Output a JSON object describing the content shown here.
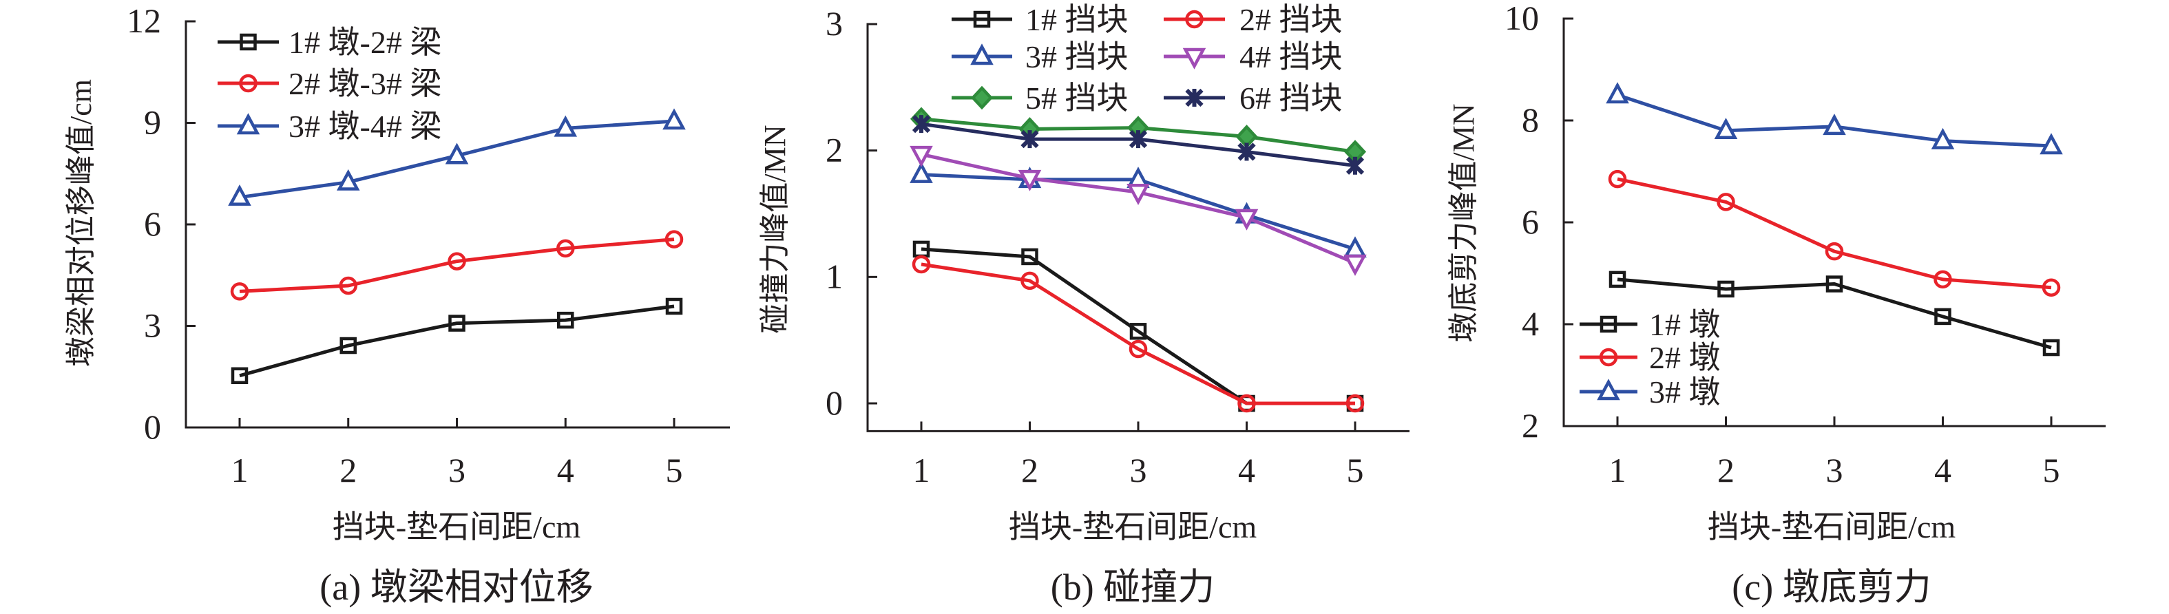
{
  "chart_data": [
    {
      "type": "line",
      "caption": "(a) 墩梁相对位移",
      "xlabel": "挡块-垫石间距/cm",
      "ylabel": "墩梁相对位移峰值/cm",
      "x": [
        1,
        2,
        3,
        4,
        5
      ],
      "ylim": [
        0,
        12
      ],
      "yticks": [
        0,
        3,
        6,
        9,
        12
      ],
      "legend_position": "top-left",
      "series": [
        {
          "name": "1# 墩-2# 梁",
          "color": "#1a1a1a",
          "marker": "square",
          "values": [
            1.53,
            2.42,
            3.08,
            3.17,
            3.58
          ]
        },
        {
          "name": "2# 墩-3# 梁",
          "color": "#e8232a",
          "marker": "circle",
          "values": [
            4.02,
            4.19,
            4.91,
            5.29,
            5.56
          ]
        },
        {
          "name": "3# 墩-4# 梁",
          "color": "#2e4fa3",
          "marker": "triangle-up",
          "values": [
            6.8,
            7.25,
            8.03,
            8.84,
            9.05
          ]
        }
      ]
    },
    {
      "type": "line",
      "caption": "(b) 碰撞力",
      "xlabel": "挡块-垫石间距/cm",
      "ylabel": "碰撞力峰值/MN",
      "x": [
        1,
        2,
        3,
        4,
        5
      ],
      "ylim": [
        -0.22,
        3
      ],
      "yticks": [
        0,
        1,
        2,
        3
      ],
      "legend_position": "top",
      "series": [
        {
          "name": "1# 挡块",
          "color": "#1a1a1a",
          "marker": "square",
          "values": [
            1.22,
            1.16,
            0.57,
            0,
            0
          ]
        },
        {
          "name": "2# 挡块",
          "color": "#e8232a",
          "marker": "circle",
          "values": [
            1.1,
            0.97,
            0.43,
            0,
            0
          ]
        },
        {
          "name": "3# 挡块",
          "color": "#2e4fa3",
          "marker": "triangle-up",
          "values": [
            1.81,
            1.77,
            1.77,
            1.49,
            1.22
          ]
        },
        {
          "name": "4# 挡块",
          "color": "#a04bb5",
          "marker": "triangle-down",
          "values": [
            1.97,
            1.78,
            1.67,
            1.47,
            1.11
          ]
        },
        {
          "name": "5# 挡块",
          "color": "#2e8b3a",
          "marker": "diamond",
          "values": [
            2.25,
            2.17,
            2.18,
            2.11,
            1.99
          ]
        },
        {
          "name": "6# 挡块",
          "color": "#262c5e",
          "marker": "star",
          "values": [
            2.21,
            2.09,
            2.09,
            1.99,
            1.88
          ]
        }
      ]
    },
    {
      "type": "line",
      "caption": "(c) 墩底剪力",
      "xlabel": "挡块-垫石间距/cm",
      "ylabel": "墩底剪力峰值/MN",
      "x": [
        1,
        2,
        3,
        4,
        5
      ],
      "ylim": [
        2,
        10
      ],
      "yticks": [
        2,
        4,
        6,
        8,
        10
      ],
      "legend_position": "bottom-left",
      "series": [
        {
          "name": "1# 墩",
          "color": "#1a1a1a",
          "marker": "square",
          "values": [
            4.88,
            4.69,
            4.79,
            4.15,
            3.54
          ]
        },
        {
          "name": "2# 墩",
          "color": "#e8232a",
          "marker": "circle",
          "values": [
            6.85,
            6.4,
            5.43,
            4.88,
            4.72
          ]
        },
        {
          "name": "3# 墩",
          "color": "#2e4fa3",
          "marker": "triangle-up",
          "values": [
            8.5,
            7.8,
            7.88,
            7.6,
            7.5
          ]
        }
      ]
    }
  ]
}
